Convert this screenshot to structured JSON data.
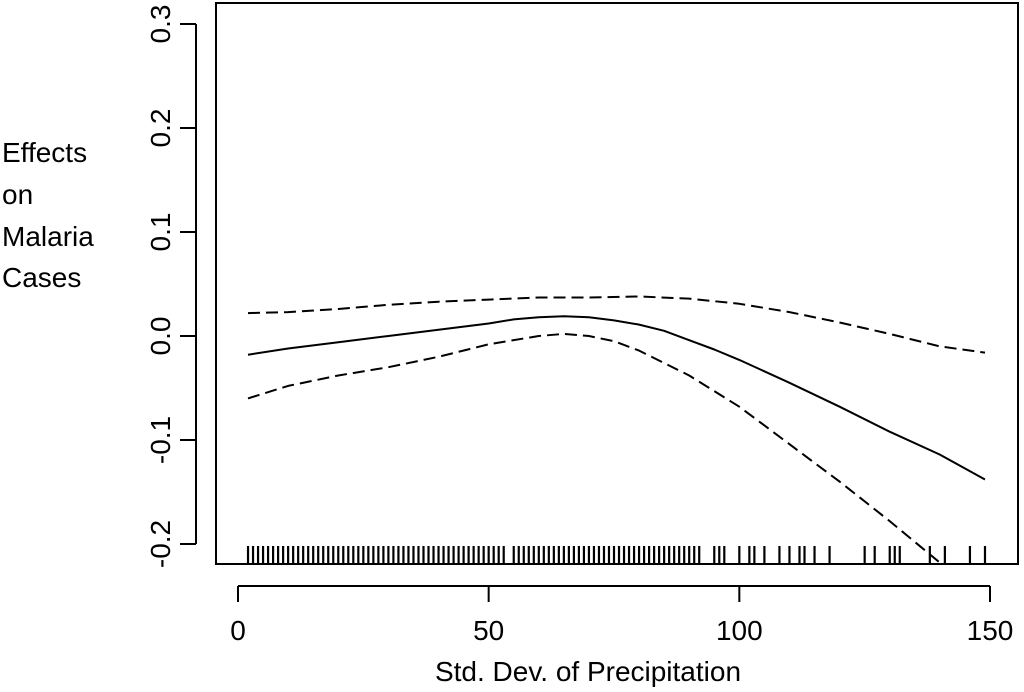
{
  "chart_data": {
    "type": "line",
    "title": "",
    "xlabel": "Std. Dev. of Precipitation",
    "ylabel_lines": [
      "Effects",
      "on",
      "Malaria",
      "Cases"
    ],
    "xlim": [
      0,
      150
    ],
    "ylim": [
      -0.2,
      0.3
    ],
    "x_ticks": [
      0,
      50,
      100,
      150
    ],
    "x_tick_labels": [
      "0",
      "50",
      "100",
      "150"
    ],
    "y_ticks": [
      -0.2,
      -0.1,
      0.0,
      0.1,
      0.2,
      0.3
    ],
    "y_tick_labels": [
      "-0.2",
      "-0.1",
      "0.0",
      "0.1",
      "0.2",
      "0.3"
    ],
    "grid": false,
    "legend": "none",
    "series": [
      {
        "role": "estimate",
        "style": "solid",
        "x": [
          2,
          10,
          20,
          30,
          40,
          50,
          55,
          60,
          65,
          70,
          75,
          80,
          85,
          90,
          95,
          100,
          110,
          120,
          130,
          140,
          149
        ],
        "y": [
          -0.018,
          -0.012,
          -0.006,
          0.0,
          0.006,
          0.012,
          0.016,
          0.018,
          0.019,
          0.018,
          0.015,
          0.011,
          0.005,
          -0.004,
          -0.013,
          -0.023,
          -0.045,
          -0.068,
          -0.092,
          -0.114,
          -0.138
        ]
      },
      {
        "role": "upper",
        "style": "dashed",
        "x": [
          2,
          10,
          20,
          30,
          40,
          50,
          60,
          70,
          80,
          90,
          100,
          110,
          120,
          130,
          140,
          149
        ],
        "y": [
          0.022,
          0.023,
          0.026,
          0.03,
          0.033,
          0.035,
          0.037,
          0.037,
          0.038,
          0.036,
          0.031,
          0.023,
          0.013,
          0.002,
          -0.01,
          -0.016
        ]
      },
      {
        "role": "lower",
        "style": "dashed",
        "x": [
          2,
          10,
          20,
          30,
          40,
          50,
          60,
          65,
          70,
          75,
          80,
          90,
          100,
          110,
          120,
          130,
          140
        ],
        "y": [
          -0.06,
          -0.048,
          -0.038,
          -0.03,
          -0.02,
          -0.008,
          0.0,
          0.002,
          0.0,
          -0.005,
          -0.014,
          -0.038,
          -0.068,
          -0.104,
          -0.14,
          -0.178,
          -0.218
        ]
      }
    ],
    "rug": [
      2,
      3,
      4,
      5,
      6,
      7,
      8,
      9,
      10,
      11,
      12,
      13,
      14,
      15,
      16,
      17,
      18,
      19,
      20,
      21,
      22,
      23,
      24,
      25,
      26,
      27,
      28,
      29,
      30,
      31,
      32,
      33,
      34,
      35,
      36,
      37,
      38,
      39,
      40,
      41,
      42,
      43,
      44,
      45,
      46,
      47,
      48,
      49,
      50,
      51,
      52,
      53,
      55,
      56,
      57,
      58,
      59,
      60,
      61,
      62,
      63,
      64,
      65,
      66,
      67,
      68,
      69,
      70,
      71,
      72,
      73,
      74,
      75,
      76,
      77,
      78,
      79,
      80,
      81,
      82,
      83,
      84,
      85,
      86,
      87,
      88,
      89,
      90,
      91,
      92,
      95,
      96,
      97,
      100,
      102,
      103,
      105,
      108,
      110,
      112,
      113,
      115,
      118,
      125,
      127,
      130,
      131,
      132,
      138,
      141,
      146,
      149
    ]
  }
}
